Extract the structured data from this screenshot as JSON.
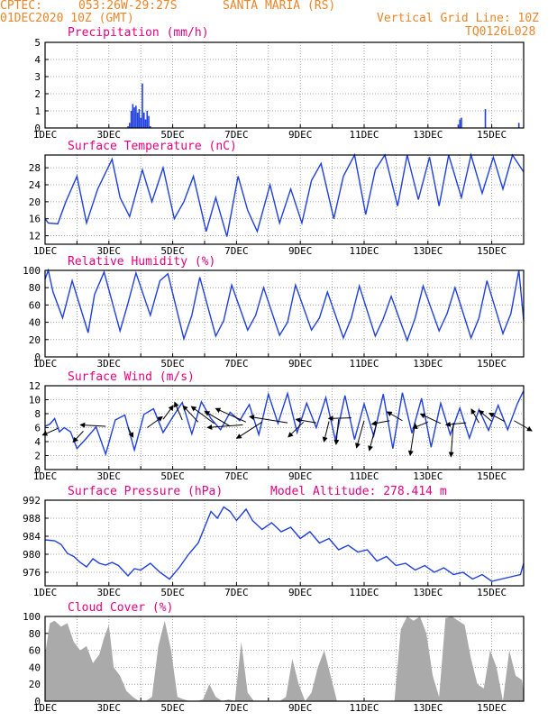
{
  "header": {
    "source": "CPTEC:",
    "coords": "053:26W-29:27S",
    "station": "SANTA MARIA (RS)",
    "init": "01DEC2020 10Z (GMT)",
    "grid_note": "Vertical Grid Line: 10Z",
    "run_id": "TQ0126L028"
  },
  "x_ticks": [
    "1DEC",
    "3DEC",
    "5DEC",
    "7DEC",
    "9DEC",
    "11DEC",
    "13DEC",
    "15DEC"
  ],
  "x_range_days": [
    0,
    15
  ],
  "colors": {
    "title": "#e6007e",
    "header": "#e8862a",
    "line": "#1f3fe0",
    "bars": "#1f3fe0",
    "cloud": "#aaaaaa",
    "grid": "#8a8a8a"
  },
  "chart_data": [
    {
      "type": "bar",
      "title": "Precipitation (mm/h)",
      "ylim": [
        0,
        5
      ],
      "yticks": [
        0,
        1,
        2,
        3,
        4,
        5
      ],
      "x": [
        2.6,
        2.65,
        2.7,
        2.75,
        2.8,
        2.85,
        2.9,
        2.95,
        3.0,
        3.05,
        3.1,
        3.15,
        3.2,
        3.25,
        3.3,
        12.95,
        13.0,
        13.05,
        13.8,
        14.85
      ],
      "values": [
        0.1,
        0.3,
        1.0,
        1.4,
        1.2,
        1.3,
        0.9,
        1.1,
        0.6,
        2.6,
        0.9,
        0.5,
        1.0,
        0.7,
        0.1,
        0.2,
        0.5,
        0.6,
        1.1,
        0.3
      ]
    },
    {
      "type": "line",
      "title": "Surface Temperature (nC)",
      "ylim": [
        10,
        31
      ],
      "yticks": [
        12,
        16,
        20,
        24,
        28
      ],
      "x": [
        0,
        0.1,
        0.4,
        0.65,
        1.0,
        1.3,
        1.65,
        2.1,
        2.35,
        2.65,
        3.05,
        3.35,
        3.7,
        4.05,
        4.35,
        4.65,
        5.05,
        5.35,
        5.7,
        6.05,
        6.35,
        6.65,
        7.05,
        7.35,
        7.7,
        8.05,
        8.35,
        8.65,
        9.05,
        9.35,
        9.7,
        10.05,
        10.35,
        10.65,
        11.05,
        11.35,
        11.7,
        12.05,
        12.35,
        12.65,
        13.05,
        13.35,
        13.7,
        14.05,
        14.35,
        14.65,
        15.0
      ],
      "values": [
        16,
        15,
        14.8,
        20,
        26,
        15,
        23,
        30,
        21,
        16.5,
        27.5,
        20,
        28,
        16,
        20,
        26,
        13,
        21,
        11.8,
        26,
        18,
        13,
        24,
        15,
        23,
        15,
        25,
        29,
        16,
        26,
        31,
        17,
        27.5,
        31,
        19,
        31,
        20.5,
        30.5,
        19,
        31,
        21,
        31,
        22,
        30.5,
        23,
        31,
        27
      ]
    },
    {
      "type": "line",
      "title": "Relative Humidity (%)",
      "ylim": [
        0,
        100
      ],
      "yticks": [
        0,
        20,
        40,
        60,
        80,
        100
      ],
      "x": [
        0,
        0.1,
        0.25,
        0.55,
        0.85,
        1.35,
        1.55,
        1.85,
        2.35,
        2.6,
        2.85,
        3.3,
        3.6,
        3.85,
        4.35,
        4.6,
        4.85,
        5.35,
        5.6,
        5.85,
        6.35,
        6.6,
        6.85,
        7.35,
        7.6,
        7.85,
        8.35,
        8.6,
        8.85,
        9.35,
        9.6,
        9.85,
        10.35,
        10.6,
        10.85,
        11.35,
        11.6,
        11.85,
        12.35,
        12.6,
        12.85,
        13.35,
        13.6,
        13.85,
        14.35,
        14.6,
        14.85,
        15.0
      ],
      "values": [
        90,
        100,
        75,
        45,
        88,
        28,
        72,
        98,
        30,
        62,
        97,
        48,
        88,
        96,
        21,
        48,
        92,
        24,
        42,
        83,
        31,
        48,
        80,
        25,
        40,
        83,
        31,
        45,
        75,
        22,
        45,
        82,
        24,
        44,
        70,
        19,
        45,
        82,
        30,
        50,
        80,
        22,
        45,
        88,
        27,
        50,
        100,
        42
      ]
    },
    {
      "type": "line",
      "title": "Surface Wind (m/s)",
      "ylim": [
        0,
        12
      ],
      "yticks": [
        0,
        2,
        4,
        6,
        8,
        10,
        12
      ],
      "x": [
        0,
        0.15,
        0.3,
        0.45,
        0.6,
        0.8,
        1.0,
        1.3,
        1.6,
        1.9,
        2.2,
        2.5,
        2.8,
        3.1,
        3.4,
        3.7,
        4.0,
        4.3,
        4.6,
        4.9,
        5.2,
        5.5,
        5.8,
        6.1,
        6.4,
        6.7,
        7.0,
        7.3,
        7.6,
        7.9,
        8.2,
        8.5,
        8.8,
        9.1,
        9.4,
        9.7,
        10.0,
        10.3,
        10.6,
        10.9,
        11.2,
        11.5,
        11.8,
        12.1,
        12.4,
        12.7,
        13.0,
        13.3,
        13.6,
        13.9,
        14.2,
        14.5,
        14.8,
        15.0
      ],
      "values": [
        6.2,
        6.5,
        7.3,
        5.4,
        6.0,
        5.4,
        3.0,
        4.5,
        6.1,
        2.2,
        7.1,
        7.8,
        2.8,
        7.9,
        8.7,
        5.3,
        7.5,
        9.6,
        5.1,
        9.7,
        7.3,
        5.7,
        8.2,
        7.0,
        9.3,
        5.0,
        10.8,
        6.6,
        10.9,
        5.3,
        9.5,
        6.0,
        10.3,
        4.2,
        10.6,
        4.3,
        9.4,
        4.8,
        10.8,
        3.0,
        11.0,
        5.2,
        10.2,
        3.2,
        9.5,
        5.0,
        8.8,
        4.5,
        8.6,
        5.6,
        9.2,
        5.7,
        9.4,
        11.3
      ],
      "arrows": [
        {
          "x": 0.4,
          "y": 5.9,
          "dx": -0.6,
          "dy": -1.0
        },
        {
          "x": 1.2,
          "y": 5.5,
          "dx": -0.4,
          "dy": -1.6
        },
        {
          "x": 1.9,
          "y": 6.2,
          "dx": -1.0,
          "dy": 0.2
        },
        {
          "x": 2.6,
          "y": 6.0,
          "dx": 0.2,
          "dy": -1.4
        },
        {
          "x": 3.2,
          "y": 6.0,
          "dx": 0.6,
          "dy": 1.6
        },
        {
          "x": 3.7,
          "y": 7.2,
          "dx": 0.4,
          "dy": 2.0
        },
        {
          "x": 4.3,
          "y": 7.1,
          "dx": -0.3,
          "dy": 2.6
        },
        {
          "x": 4.8,
          "y": 6.8,
          "dx": -0.6,
          "dy": 2.4
        },
        {
          "x": 5.3,
          "y": 6.6,
          "dx": -0.9,
          "dy": 2.5
        },
        {
          "x": 5.8,
          "y": 6.2,
          "dx": -1.0,
          "dy": 2.2
        },
        {
          "x": 6.3,
          "y": 6.8,
          "dx": -1.2,
          "dy": 2.0
        },
        {
          "x": 6.2,
          "y": 6.4,
          "dx": -1.4,
          "dy": -0.4
        },
        {
          "x": 6.8,
          "y": 6.8,
          "dx": -1.0,
          "dy": -2.4
        },
        {
          "x": 7.6,
          "y": 6.7,
          "dx": -1.5,
          "dy": 0.9
        },
        {
          "x": 8.1,
          "y": 6.8,
          "dx": -0.6,
          "dy": -2.2
        },
        {
          "x": 8.5,
          "y": 6.7,
          "dx": -0.8,
          "dy": 0.5
        },
        {
          "x": 8.9,
          "y": 6.9,
          "dx": -0.2,
          "dy": -3.0
        },
        {
          "x": 9.2,
          "y": 7.2,
          "dx": -0.1,
          "dy": -3.7
        },
        {
          "x": 9.6,
          "y": 7.4,
          "dx": -0.9,
          "dy": -0.1
        },
        {
          "x": 10.0,
          "y": 7.0,
          "dx": -0.3,
          "dy": -4.0
        },
        {
          "x": 10.4,
          "y": 6.8,
          "dx": -0.3,
          "dy": -4.2
        },
        {
          "x": 10.8,
          "y": 7.0,
          "dx": -0.7,
          "dy": -0.5
        },
        {
          "x": 11.2,
          "y": 7.0,
          "dx": -0.6,
          "dy": 1.3
        },
        {
          "x": 11.6,
          "y": 6.7,
          "dx": -0.2,
          "dy": -4.8
        },
        {
          "x": 12.0,
          "y": 6.8,
          "dx": -0.6,
          "dy": -0.9
        },
        {
          "x": 12.4,
          "y": 6.6,
          "dx": -0.8,
          "dy": 1.4
        },
        {
          "x": 12.8,
          "y": 6.7,
          "dx": -0.1,
          "dy": -5.0
        },
        {
          "x": 13.2,
          "y": 6.7,
          "dx": -0.8,
          "dy": -0.3
        },
        {
          "x": 13.6,
          "y": 6.7,
          "dx": -0.3,
          "dy": 2.0
        },
        {
          "x": 14.0,
          "y": 6.9,
          "dx": -0.5,
          "dy": 1.6
        },
        {
          "x": 14.4,
          "y": 6.9,
          "dx": -0.6,
          "dy": 1.2
        },
        {
          "x": 14.7,
          "y": 7.0,
          "dx": 0.7,
          "dy": -1.5
        }
      ]
    },
    {
      "type": "line",
      "title": "Surface Pressure (hPa)",
      "annotation": "Model Altitude: 278.414 m",
      "ylim": [
        973,
        992
      ],
      "yticks": [
        976,
        980,
        984,
        988,
        992
      ],
      "x": [
        0,
        0.3,
        0.5,
        0.7,
        0.9,
        1.1,
        1.3,
        1.5,
        1.7,
        1.9,
        2.1,
        2.3,
        2.6,
        2.8,
        3.0,
        3.3,
        3.6,
        3.9,
        4.2,
        4.5,
        4.8,
        5.0,
        5.2,
        5.4,
        5.6,
        5.8,
        6.0,
        6.3,
        6.5,
        6.8,
        7.1,
        7.4,
        7.7,
        8.0,
        8.3,
        8.6,
        8.9,
        9.2,
        9.5,
        9.8,
        10.1,
        10.4,
        10.7,
        11.0,
        11.3,
        11.6,
        11.9,
        12.2,
        12.5,
        12.8,
        13.1,
        13.4,
        13.7,
        14.0,
        14.3,
        14.6,
        14.9,
        15.0
      ],
      "values": [
        983.2,
        983.0,
        982.2,
        980.2,
        979.5,
        978.2,
        977.2,
        979.0,
        978.0,
        977.6,
        978.2,
        977.5,
        975.2,
        976.8,
        976.5,
        978.0,
        976.0,
        974.5,
        977.0,
        980.0,
        982.5,
        986.0,
        989.5,
        988.0,
        990.5,
        989.5,
        987.5,
        990.0,
        987.5,
        985.5,
        987.0,
        985.0,
        986.0,
        983.5,
        985.0,
        982.5,
        983.5,
        981.0,
        982.0,
        980.5,
        981.0,
        978.5,
        979.5,
        977.5,
        978.0,
        976.5,
        977.5,
        976.0,
        977.0,
        975.5,
        976.0,
        974.5,
        975.5,
        974.0,
        974.5,
        975.0,
        975.5,
        978.0
      ]
    },
    {
      "type": "area",
      "title": "Cloud Cover (%)",
      "ylim": [
        0,
        100
      ],
      "yticks": [
        0,
        20,
        40,
        60,
        80,
        100
      ],
      "x": [
        0,
        0.15,
        0.3,
        0.5,
        0.7,
        0.9,
        1.1,
        1.3,
        1.5,
        1.7,
        1.85,
        2.0,
        2.15,
        2.35,
        2.55,
        2.75,
        2.95,
        3.15,
        3.35,
        3.55,
        3.75,
        3.95,
        4.15,
        4.35,
        4.55,
        4.75,
        4.95,
        5.15,
        5.35,
        5.55,
        5.75,
        5.95,
        6.15,
        6.35,
        6.55,
        6.75,
        6.95,
        7.15,
        7.35,
        7.55,
        7.75,
        7.95,
        8.15,
        8.35,
        8.55,
        8.75,
        8.95,
        9.15,
        9.35,
        9.55,
        9.75,
        9.95,
        10.15,
        10.35,
        10.55,
        10.75,
        10.95,
        11.15,
        11.35,
        11.55,
        11.75,
        11.95,
        12.15,
        12.35,
        12.55,
        12.75,
        12.95,
        13.15,
        13.35,
        13.55,
        13.75,
        13.95,
        14.15,
        14.35,
        14.55,
        14.75,
        14.95,
        15.0
      ],
      "values": [
        55,
        92,
        95,
        88,
        92,
        70,
        60,
        65,
        45,
        55,
        75,
        90,
        40,
        30,
        12,
        5,
        0,
        0,
        5,
        65,
        95,
        60,
        5,
        2,
        0,
        0,
        2,
        20,
        5,
        0,
        2,
        0,
        70,
        10,
        0,
        0,
        0,
        0,
        0,
        5,
        50,
        20,
        0,
        10,
        40,
        60,
        30,
        0,
        0,
        0,
        0,
        0,
        0,
        0,
        0,
        0,
        0,
        85,
        100,
        95,
        100,
        80,
        30,
        5,
        98,
        100,
        95,
        90,
        50,
        20,
        15,
        60,
        40,
        0,
        60,
        30,
        25,
        10
      ]
    }
  ]
}
